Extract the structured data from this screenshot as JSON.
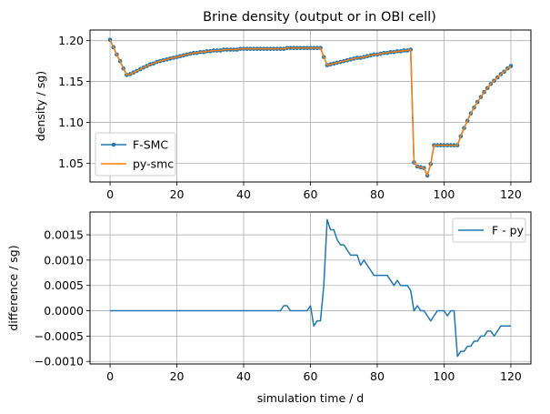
{
  "chart_data": [
    {
      "type": "line",
      "title": "Brine density (output or in OBI cell)",
      "xlabel": "",
      "ylabel": "density / sg)",
      "xlim": [
        -6,
        126
      ],
      "ylim": [
        1.027,
        1.213
      ],
      "xticks": [
        0,
        20,
        40,
        60,
        80,
        100,
        120
      ],
      "xtick_labels": [
        "0",
        "20",
        "40",
        "60",
        "80",
        "100",
        "120"
      ],
      "yticks": [
        1.05,
        1.1,
        1.15,
        1.2
      ],
      "ytick_labels": [
        "1.05",
        "1.10",
        "1.15",
        "1.20"
      ],
      "grid": true,
      "legend": "lower-left",
      "series": [
        {
          "name": "F-SMC",
          "color": "#1f77b4",
          "marker": "circle",
          "x": [
            0,
            1,
            2,
            3,
            4,
            5,
            6,
            7,
            8,
            9,
            10,
            11,
            12,
            13,
            14,
            15,
            16,
            17,
            18,
            19,
            20,
            21,
            22,
            23,
            24,
            25,
            26,
            27,
            28,
            29,
            30,
            31,
            32,
            33,
            34,
            35,
            36,
            37,
            38,
            39,
            40,
            41,
            42,
            43,
            44,
            45,
            46,
            47,
            48,
            49,
            50,
            51,
            52,
            53,
            54,
            55,
            56,
            57,
            58,
            59,
            60,
            61,
            62,
            63,
            64,
            65,
            66,
            67,
            68,
            69,
            70,
            71,
            72,
            73,
            74,
            75,
            76,
            77,
            78,
            79,
            80,
            81,
            82,
            83,
            84,
            85,
            86,
            87,
            88,
            89,
            90,
            91,
            92,
            93,
            94,
            95,
            96,
            97,
            98,
            99,
            100,
            101,
            102,
            103,
            104,
            105,
            106,
            107,
            108,
            109,
            110,
            111,
            112,
            113,
            114,
            115,
            116,
            117,
            118,
            119,
            120
          ],
          "y": [
            1.201,
            1.192,
            1.183,
            1.175,
            1.166,
            1.158,
            1.159,
            1.161,
            1.163,
            1.165,
            1.167,
            1.169,
            1.171,
            1.172,
            1.174,
            1.175,
            1.176,
            1.177,
            1.178,
            1.179,
            1.18,
            1.181,
            1.182,
            1.183,
            1.184,
            1.185,
            1.185,
            1.186,
            1.186,
            1.187,
            1.187,
            1.188,
            1.188,
            1.188,
            1.189,
            1.189,
            1.189,
            1.189,
            1.189,
            1.19,
            1.19,
            1.19,
            1.19,
            1.19,
            1.19,
            1.19,
            1.19,
            1.19,
            1.19,
            1.19,
            1.19,
            1.19,
            1.19,
            1.191,
            1.191,
            1.191,
            1.191,
            1.191,
            1.191,
            1.191,
            1.191,
            1.191,
            1.191,
            1.191,
            1.18,
            1.17,
            1.171,
            1.172,
            1.173,
            1.174,
            1.175,
            1.176,
            1.177,
            1.178,
            1.179,
            1.179,
            1.18,
            1.181,
            1.182,
            1.183,
            1.183,
            1.184,
            1.185,
            1.185,
            1.186,
            1.186,
            1.187,
            1.187,
            1.188,
            1.188,
            1.189,
            1.051,
            1.046,
            1.045,
            1.044,
            1.035,
            1.049,
            1.072,
            1.072,
            1.072,
            1.072,
            1.072,
            1.072,
            1.072,
            1.072,
            1.083,
            1.093,
            1.102,
            1.111,
            1.118,
            1.125,
            1.131,
            1.137,
            1.142,
            1.147,
            1.151,
            1.155,
            1.159,
            1.162,
            1.166,
            1.169
          ]
        },
        {
          "name": "py-smc",
          "color": "#ff7f0e",
          "marker": "none",
          "x": [
            0,
            1,
            2,
            3,
            4,
            5,
            6,
            7,
            8,
            9,
            10,
            11,
            12,
            13,
            14,
            15,
            16,
            17,
            18,
            19,
            20,
            21,
            22,
            23,
            24,
            25,
            26,
            27,
            28,
            29,
            30,
            31,
            32,
            33,
            34,
            35,
            36,
            37,
            38,
            39,
            40,
            41,
            42,
            43,
            44,
            45,
            46,
            47,
            48,
            49,
            50,
            51,
            52,
            53,
            54,
            55,
            56,
            57,
            58,
            59,
            60,
            61,
            62,
            63,
            64,
            65,
            66,
            67,
            68,
            69,
            70,
            71,
            72,
            73,
            74,
            75,
            76,
            77,
            78,
            79,
            80,
            81,
            82,
            83,
            84,
            85,
            86,
            87,
            88,
            89,
            90,
            91,
            92,
            93,
            94,
            95,
            96,
            97,
            98,
            99,
            100,
            101,
            102,
            103,
            104,
            105,
            106,
            107,
            108,
            109,
            110,
            111,
            112,
            113,
            114,
            115,
            116,
            117,
            118,
            119,
            120
          ],
          "y": [
            1.201,
            1.192,
            1.183,
            1.175,
            1.166,
            1.158,
            1.159,
            1.161,
            1.163,
            1.165,
            1.167,
            1.169,
            1.171,
            1.172,
            1.174,
            1.175,
            1.176,
            1.177,
            1.178,
            1.179,
            1.18,
            1.181,
            1.182,
            1.183,
            1.184,
            1.185,
            1.185,
            1.186,
            1.186,
            1.187,
            1.187,
            1.188,
            1.188,
            1.188,
            1.189,
            1.189,
            1.189,
            1.189,
            1.189,
            1.19,
            1.19,
            1.19,
            1.19,
            1.19,
            1.19,
            1.19,
            1.19,
            1.19,
            1.19,
            1.19,
            1.19,
            1.19,
            1.19,
            1.191,
            1.191,
            1.191,
            1.191,
            1.191,
            1.191,
            1.191,
            1.191,
            1.191,
            1.191,
            1.191,
            1.18,
            1.17,
            1.171,
            1.172,
            1.173,
            1.174,
            1.175,
            1.176,
            1.177,
            1.178,
            1.179,
            1.179,
            1.18,
            1.181,
            1.182,
            1.183,
            1.183,
            1.184,
            1.185,
            1.185,
            1.186,
            1.186,
            1.187,
            1.187,
            1.188,
            1.188,
            1.189,
            1.051,
            1.046,
            1.045,
            1.044,
            1.035,
            1.049,
            1.072,
            1.072,
            1.072,
            1.072,
            1.072,
            1.072,
            1.072,
            1.072,
            1.083,
            1.093,
            1.102,
            1.111,
            1.118,
            1.125,
            1.131,
            1.137,
            1.142,
            1.147,
            1.151,
            1.155,
            1.159,
            1.162,
            1.166,
            1.169
          ]
        }
      ]
    },
    {
      "type": "line",
      "title": "",
      "xlabel": "simulation time / d",
      "ylabel": "difference / sg)",
      "xlim": [
        -6,
        126
      ],
      "ylim": [
        -0.00105,
        0.00195
      ],
      "xticks": [
        0,
        20,
        40,
        60,
        80,
        100,
        120
      ],
      "xtick_labels": [
        "0",
        "20",
        "40",
        "60",
        "80",
        "100",
        "120"
      ],
      "yticks": [
        -0.001,
        -0.0005,
        0,
        0.0005,
        0.001,
        0.0015
      ],
      "ytick_labels": [
        "−0.0010",
        "−0.0005",
        "0.0000",
        "0.0005",
        "0.0010",
        "0.0015"
      ],
      "grid": true,
      "legend": "top-right",
      "series": [
        {
          "name": "F - py",
          "color": "#1f77b4",
          "marker": "none",
          "x": [
            0,
            51,
            52,
            53,
            54,
            59,
            60,
            61,
            62,
            63,
            64,
            65,
            66,
            67,
            68,
            69,
            70,
            71,
            72,
            73,
            74,
            75,
            76,
            77,
            78,
            79,
            80,
            81,
            82,
            83,
            84,
            85,
            86,
            87,
            88,
            89,
            90,
            91,
            92,
            93,
            94,
            95,
            96,
            97,
            98,
            99,
            100,
            101,
            102,
            103,
            104,
            105,
            106,
            107,
            108,
            109,
            110,
            111,
            112,
            113,
            114,
            115,
            116,
            117,
            118,
            119,
            120
          ],
          "y": [
            0,
            0,
            0.0001,
            0.0001,
            0,
            0,
            0.0001,
            -0.0003,
            -0.0002,
            -0.0002,
            0.0005,
            0.0018,
            0.0016,
            0.0016,
            0.0014,
            0.0013,
            0.0013,
            0.0012,
            0.0011,
            0.0011,
            0.0011,
            0.0009,
            0.001,
            0.0009,
            0.0008,
            0.0007,
            0.0007,
            0.0007,
            0.0007,
            0.0007,
            0.0006,
            0.0005,
            0.0006,
            0.0005,
            0.0005,
            0.0005,
            0.0004,
            0,
            0.0001,
            0,
            0,
            -0.0001,
            -0.0002,
            -0.0001,
            0,
            0,
            0,
            -0.0001,
            0,
            0,
            -0.0009,
            -0.0008,
            -0.0008,
            -0.0007,
            -0.0007,
            -0.0006,
            -0.0006,
            -0.0005,
            -0.0005,
            -0.0004,
            -0.0004,
            -0.0005,
            -0.0004,
            -0.0003,
            -0.0003,
            -0.0003,
            -0.0003
          ]
        }
      ]
    }
  ]
}
